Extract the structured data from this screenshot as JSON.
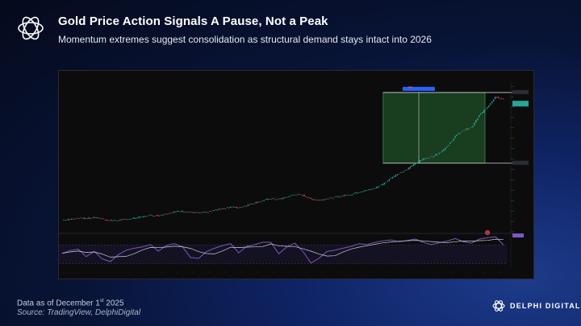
{
  "header": {
    "title": "Gold Price Action Signals A Pause, Not a Peak",
    "subtitle": "Momentum extremes suggest consolidation as structural demand stays intact into 2026"
  },
  "footer": {
    "date_prefix": "Data as of December 1",
    "date_sup": "st",
    "date_suffix": " 2025",
    "source": "Source: TradingView, DelphiDigital"
  },
  "brand": {
    "name": "DELPHI DIGITAL"
  },
  "colors": {
    "up": "#26a69a",
    "down": "#ef5350",
    "rsi": "#7e57c2",
    "zone": "#1e4d25",
    "accent": "#2962ff"
  },
  "chart_data": {
    "type": "line",
    "series": [
      {
        "values": [
          1290,
          1300,
          1335,
          1320,
          1350,
          1310,
          1270,
          1280,
          1300,
          1330,
          1360,
          1400,
          1390,
          1440,
          1480,
          1500,
          1470,
          1450,
          1470,
          1520,
          1560,
          1600,
          1580,
          1640,
          1700,
          1750,
          1800,
          1780,
          1840,
          1900,
          1880,
          1790,
          1760,
          1800,
          1830,
          1870,
          1900,
          1960,
          2000,
          2050,
          2150,
          2300,
          2400,
          2500,
          2650,
          2750,
          2800,
          2900,
          3050,
          3300,
          3450,
          3500,
          3800,
          4000,
          4250,
          4200
        ]
      }
    ],
    "rsi": [
      52,
      58,
      61,
      45,
      56,
      40,
      34,
      49,
      59,
      63,
      66,
      71,
      57,
      69,
      73,
      66,
      43,
      41,
      56,
      63,
      69,
      73,
      53,
      67,
      71,
      76,
      76,
      51,
      66,
      74,
      56,
      31,
      41,
      56,
      59,
      63,
      67,
      73,
      71,
      76,
      79,
      81,
      77,
      80,
      83,
      76,
      71,
      75,
      79,
      84,
      77,
      74,
      83,
      86,
      88,
      70
    ]
  }
}
